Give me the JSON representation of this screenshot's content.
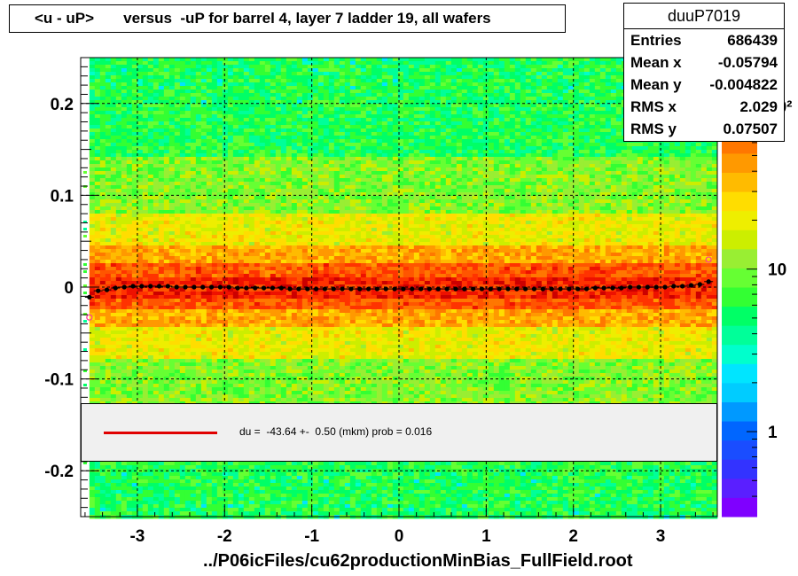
{
  "title": "<u - uP>       versus  -uP for barrel 4, layer 7 ladder 19, all wafers",
  "stats": {
    "name": "duuP7019",
    "rows": [
      {
        "label": "Entries",
        "value": "686439"
      },
      {
        "label": "Mean x",
        "value": "-0.05794"
      },
      {
        "label": "Mean y",
        "value": "-0.004822"
      },
      {
        "label": "RMS x",
        "value": "2.029"
      },
      {
        "label": "RMS y",
        "value": "0.07507"
      }
    ]
  },
  "legend": {
    "text": "du =  -43.64 +-  0.50 (mkm) prob = 0.016",
    "line_color": "#e00000"
  },
  "x_axis_title": "../P06icFiles/cu62productionMinBias_FullField.root",
  "colors": {
    "profile_points": "#000000",
    "fit_points": "#ff3399",
    "palette": [
      "#7f00ff",
      "#5a1fff",
      "#3333ff",
      "#1a4dff",
      "#0066ff",
      "#0099ff",
      "#00ccff",
      "#00e5ff",
      "#00ffcc",
      "#00ff99",
      "#00ff66",
      "#33ff33",
      "#66ff33",
      "#99ee33",
      "#ccee00",
      "#eeee00",
      "#ffdd00",
      "#ffbb00",
      "#ff9900",
      "#ff7700",
      "#ff5500",
      "#ff3300",
      "#ee1100",
      "#cc0000"
    ]
  },
  "chart_data": {
    "type": "heatmap",
    "xlim": [
      -3.65,
      3.65
    ],
    "ylim": [
      -0.25,
      0.25
    ],
    "x_ticks": [
      -3,
      -2,
      -1,
      0,
      1,
      2,
      3
    ],
    "y_ticks": [
      -0.2,
      -0.1,
      0,
      0.1,
      0.2
    ],
    "x_tick_labels": [
      "-3",
      "-2",
      "-1",
      "0",
      "1",
      "2",
      "3"
    ],
    "y_tick_labels": [
      "-0.2",
      "-0.1",
      "0",
      "0.1",
      "0.2"
    ],
    "z_scale": "log",
    "z_tick_labels": [
      "1",
      "10",
      "10²"
    ],
    "z_tick_values": [
      1,
      10,
      100
    ],
    "zlim": [
      0.3,
      200
    ],
    "grid": true,
    "profile": {
      "name": "mean",
      "x": [
        -3.55,
        -3.45,
        -3.35,
        -3.25,
        -3.15,
        -3.05,
        -2.95,
        -2.85,
        -2.75,
        -2.65,
        -2.55,
        -2.45,
        -2.35,
        -2.25,
        -2.15,
        -2.05,
        -1.95,
        -1.85,
        -1.75,
        -1.65,
        -1.55,
        -1.45,
        -1.35,
        -1.25,
        -1.15,
        -1.05,
        -0.95,
        -0.85,
        -0.75,
        -0.65,
        -0.55,
        -0.45,
        -0.35,
        -0.25,
        -0.15,
        -0.05,
        0.05,
        0.15,
        0.25,
        0.35,
        0.45,
        0.55,
        0.65,
        0.75,
        0.85,
        0.95,
        1.05,
        1.15,
        1.25,
        1.35,
        1.45,
        1.55,
        1.65,
        1.75,
        1.85,
        1.95,
        2.05,
        2.15,
        2.25,
        2.35,
        2.45,
        2.55,
        2.65,
        2.75,
        2.85,
        2.95,
        3.05,
        3.15,
        3.25,
        3.35,
        3.45,
        3.55
      ],
      "y": [
        -0.011,
        -0.004,
        -0.003,
        -0.001,
        0.0,
        0.001,
        0.001,
        0.001,
        0.001,
        0.001,
        0.0,
        0.0,
        0.0,
        0.0,
        0.0,
        0.0,
        0.0,
        -0.001,
        -0.001,
        -0.001,
        -0.001,
        -0.001,
        -0.001,
        -0.002,
        -0.002,
        -0.002,
        -0.002,
        -0.002,
        -0.002,
        -0.002,
        -0.002,
        -0.002,
        -0.002,
        -0.002,
        -0.002,
        -0.002,
        -0.002,
        -0.002,
        -0.002,
        -0.002,
        -0.002,
        -0.002,
        -0.002,
        -0.002,
        -0.002,
        -0.002,
        -0.002,
        -0.002,
        -0.002,
        -0.002,
        -0.002,
        -0.002,
        -0.002,
        -0.002,
        -0.002,
        -0.002,
        -0.002,
        -0.002,
        -0.001,
        -0.001,
        -0.001,
        -0.001,
        0.0,
        0.0,
        0.0,
        0.0,
        0.0,
        0.001,
        0.001,
        0.002,
        0.003,
        0.006
      ]
    },
    "fit_points": {
      "x": [
        -3.55,
        3.55
      ],
      "y": [
        -0.033,
        0.03
      ]
    }
  }
}
